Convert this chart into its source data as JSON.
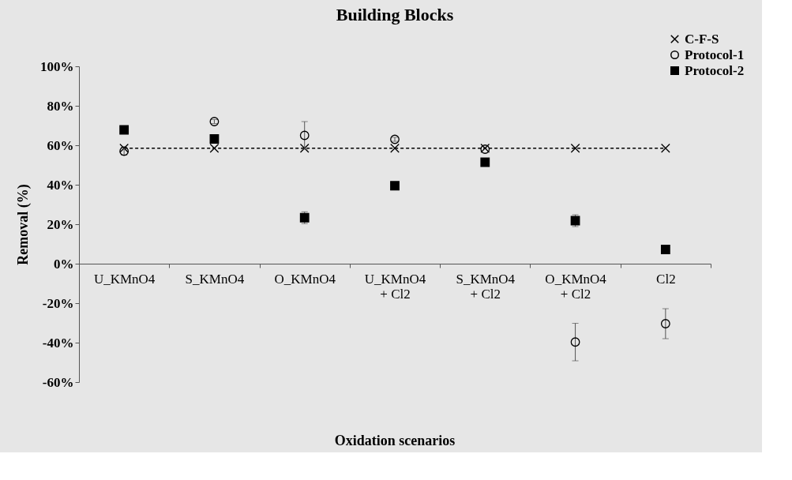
{
  "chart_data": {
    "type": "scatter",
    "title": "Building Blocks",
    "xlabel": "Oxidation scenarios",
    "ylabel": "Removal (%)",
    "categories": [
      "U_KMnO4",
      "S_KMnO4",
      "O_KMnO4",
      "U_KMnO4\n+ Cl2",
      "S_KMnO4\n+ Cl2",
      "O_KMnO4\n+ Cl2",
      "Cl2"
    ],
    "series": [
      {
        "name": "C-F-S",
        "type": "line",
        "marker": "cross",
        "line_style": "dashed",
        "color": "#000000",
        "values": [
          58.5,
          58.5,
          58.5,
          58.5,
          58.5,
          58.5,
          58.5
        ]
      },
      {
        "name": "Protocol-1",
        "marker": "circle",
        "color": "#000000",
        "values": [
          57,
          72,
          65,
          63,
          58,
          -39.7,
          -30.4
        ],
        "errors": [
          2,
          1,
          7,
          1,
          null,
          9.5,
          7.6
        ]
      },
      {
        "name": "Protocol-2",
        "marker": "square",
        "color": "#000000",
        "values": [
          67.8,
          63.2,
          23.3,
          39.5,
          51.4,
          21.8,
          7.2
        ],
        "errors": [
          null,
          null,
          3,
          null,
          null,
          3,
          1
        ]
      }
    ],
    "ylim": [
      -60,
      100
    ],
    "yticks": [
      {
        "value": -60,
        "label": "-60%"
      },
      {
        "value": -40,
        "label": "-40%"
      },
      {
        "value": -20,
        "label": "-20%"
      },
      {
        "value": 0,
        "label": "0%"
      },
      {
        "value": 20,
        "label": "20%"
      },
      {
        "value": 40,
        "label": "40%"
      },
      {
        "value": 60,
        "label": "60%"
      },
      {
        "value": 80,
        "label": "80%"
      },
      {
        "value": 100,
        "label": "100%"
      }
    ],
    "grid": false,
    "legend": "top right"
  }
}
